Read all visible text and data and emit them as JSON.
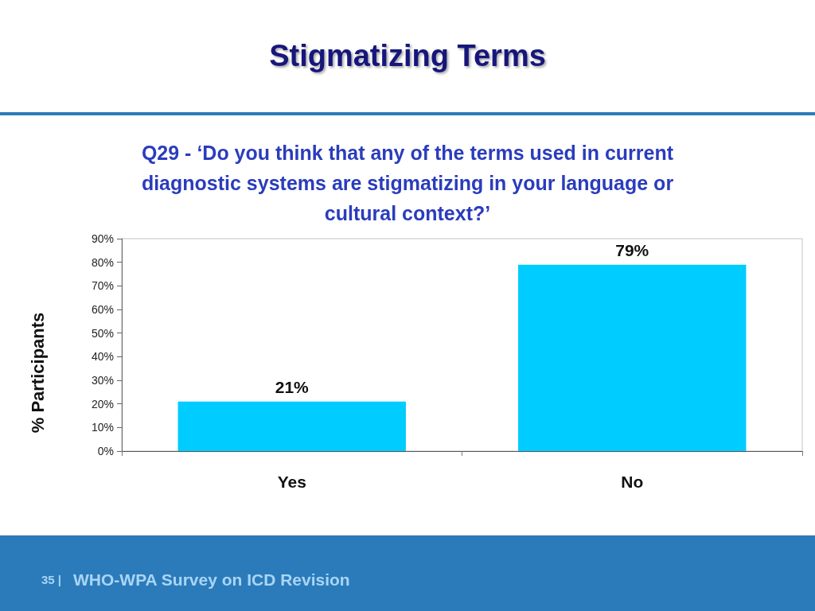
{
  "chart_data": {
    "type": "bar",
    "title": "Stigmatizing Terms",
    "subtitle": "Q29 - ‘Do you think that any of the terms used in current diagnostic systems are stigmatizing in your language or cultural context?’",
    "ylabel": "% Participants",
    "annotations": [
      "35 |",
      "WHO-WPA Survey on ICD Revision"
    ],
    "categories": [
      "Yes",
      "No"
    ],
    "values": [
      21,
      79
    ],
    "color": "#00ccff",
    "value_labels": [
      "21%",
      "79%"
    ],
    "ylim": [
      0,
      90
    ],
    "yticks": [
      {
        "value": 0,
        "label": "0%"
      },
      {
        "value": 10,
        "label": "10%"
      },
      {
        "value": 20,
        "label": "20%"
      },
      {
        "value": 30,
        "label": "30%"
      },
      {
        "value": 40,
        "label": "40%"
      },
      {
        "value": 50,
        "label": "50%"
      },
      {
        "value": 60,
        "label": "60%"
      },
      {
        "value": 70,
        "label": "70%"
      },
      {
        "value": 80,
        "label": "80%"
      },
      {
        "value": 90,
        "label": "90%"
      }
    ],
    "grid": false
  }
}
